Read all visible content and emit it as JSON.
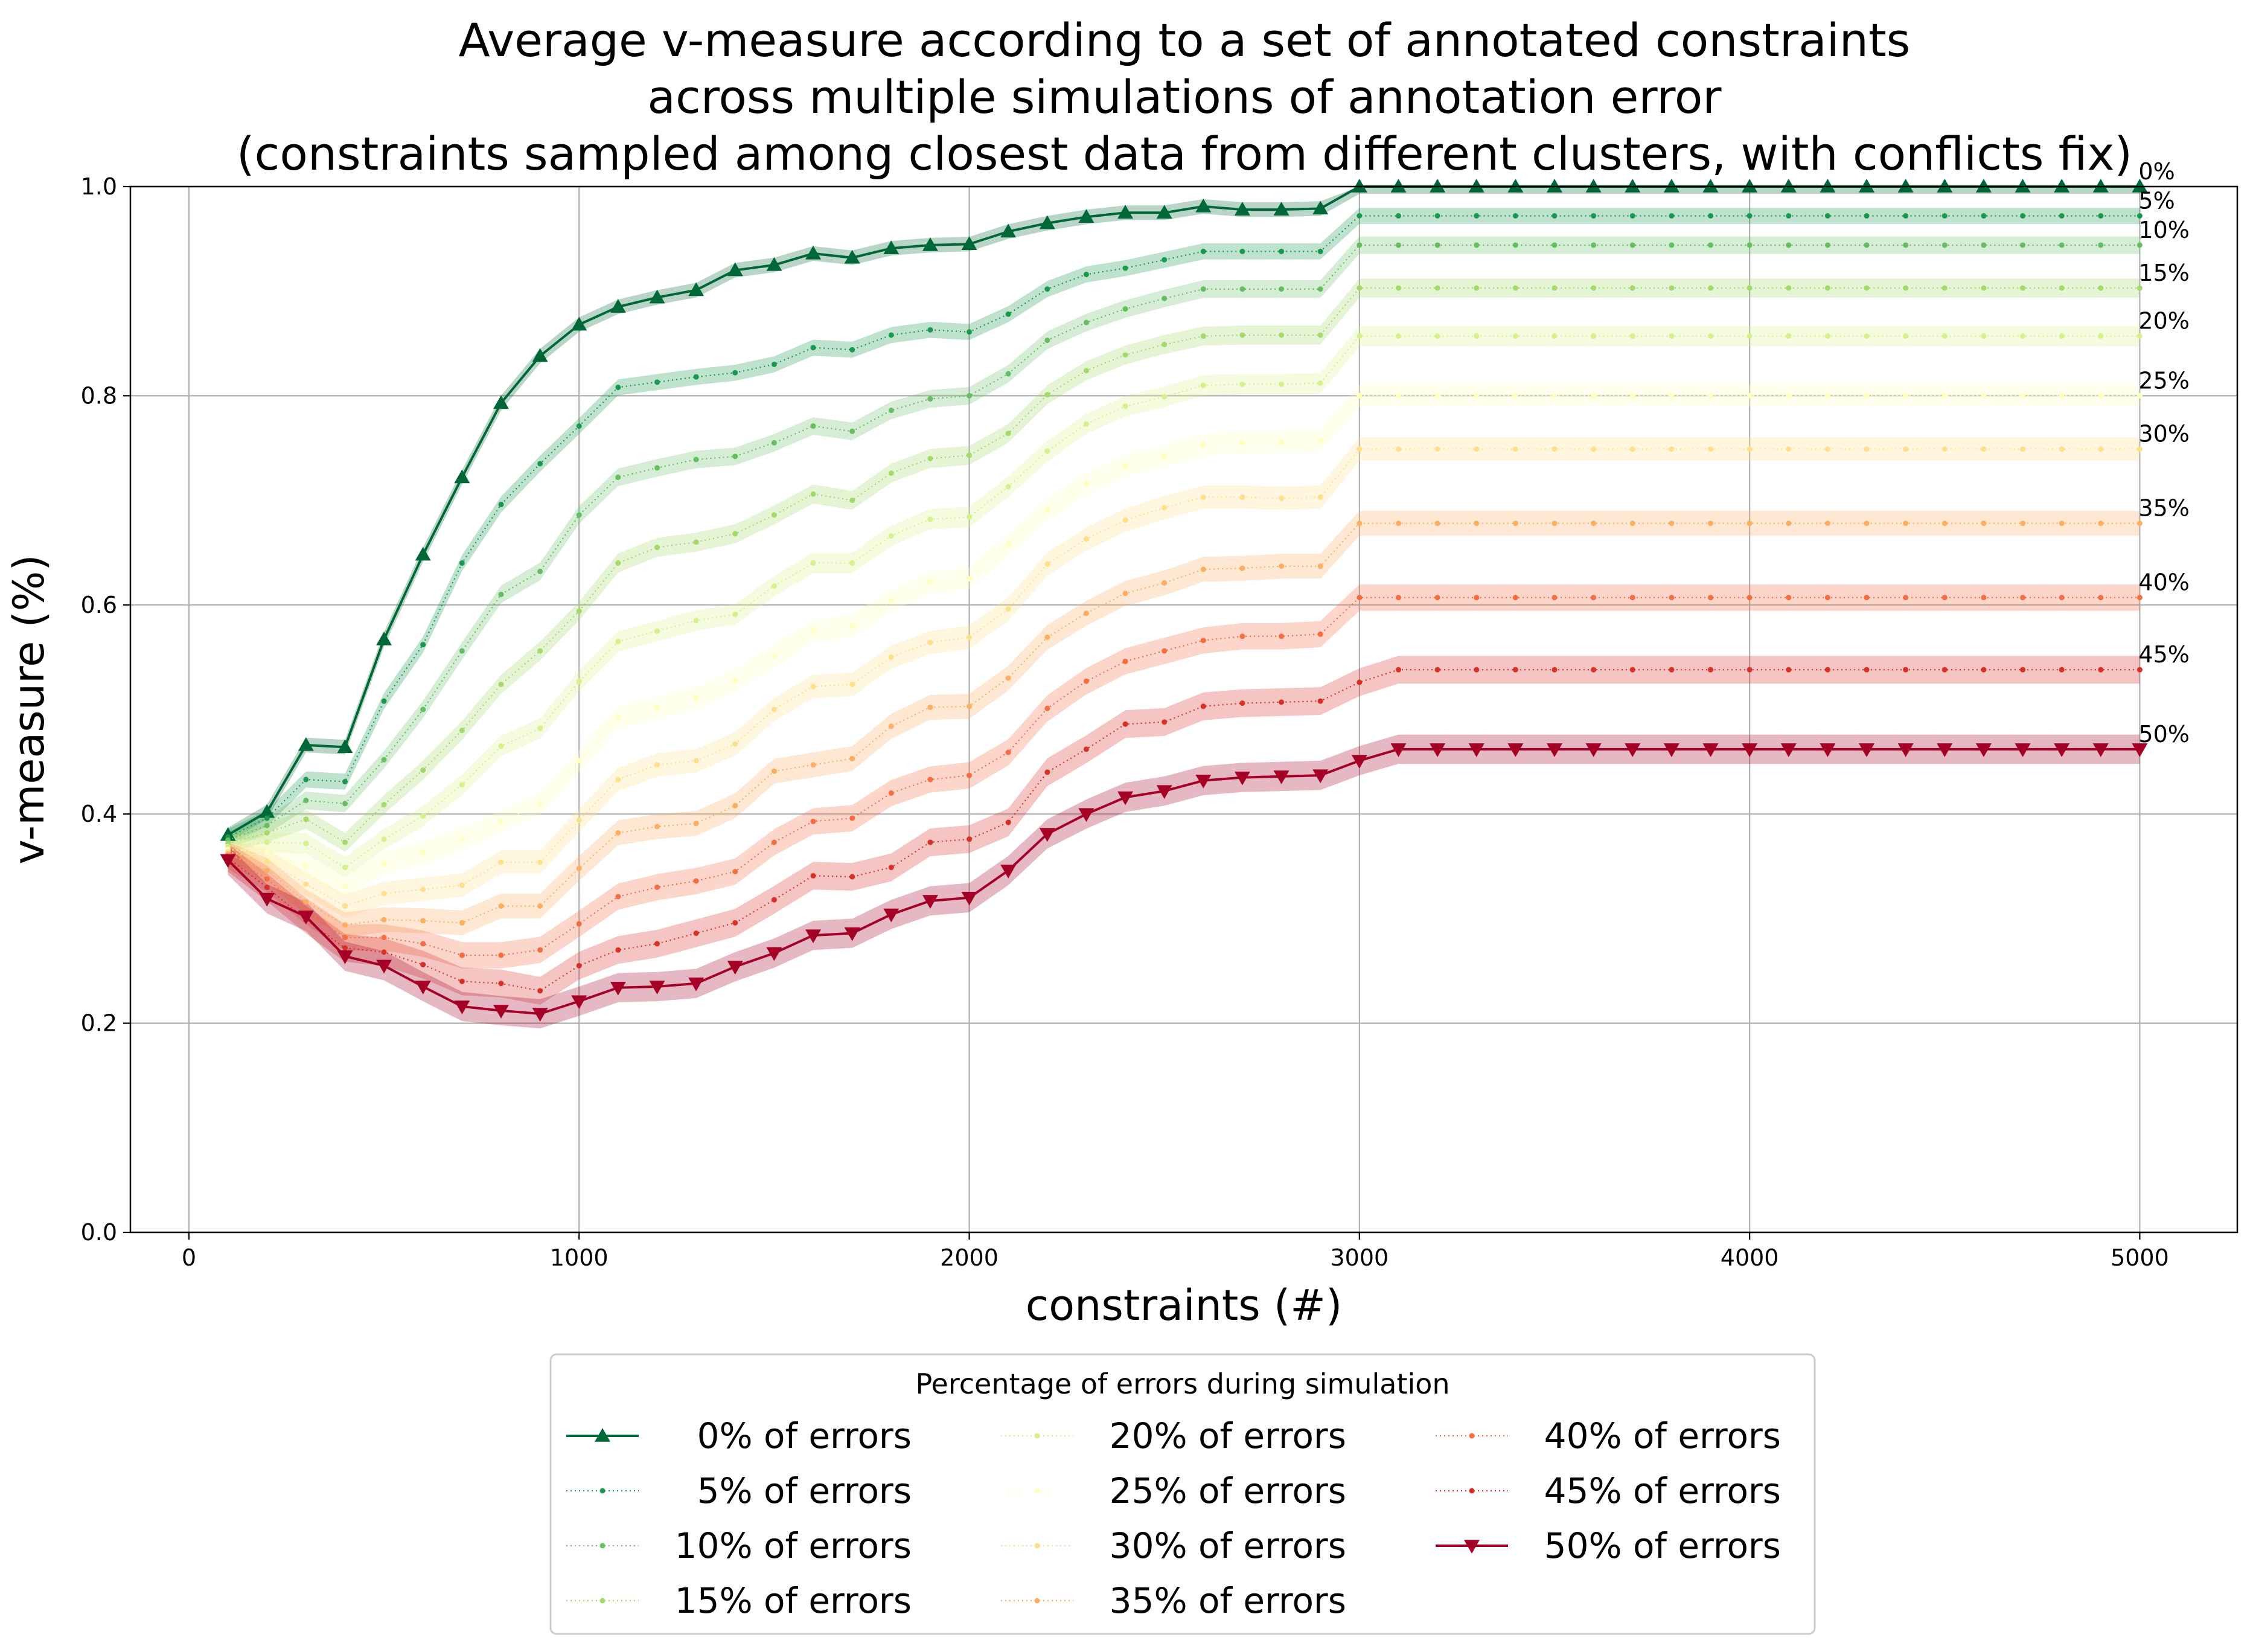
{
  "chart_data": {
    "type": "line",
    "title": [
      "Average v-measure according to a set of annotated constraints",
      "across multiple simulations of annotation error",
      "(constraints sampled among closest data from different clusters, with conflicts fix)"
    ],
    "xlabel": "constraints (#)",
    "ylabel": "v-measure (%)",
    "xlim": [
      -150,
      5250
    ],
    "ylim": [
      0,
      1.0
    ],
    "xticks": [
      0,
      1000,
      2000,
      3000,
      4000,
      5000
    ],
    "yticks": [
      0.0,
      0.2,
      0.4,
      0.6,
      0.8,
      1.0
    ],
    "grid": true,
    "legend": {
      "title": "Percentage of errors during simulation",
      "placement": "below",
      "columns": 3
    },
    "x": [
      100,
      200,
      300,
      400,
      500,
      600,
      700,
      800,
      900,
      1000,
      1100,
      1200,
      1300,
      1400,
      1500,
      1600,
      1700,
      1800,
      1900,
      2000,
      2100,
      2200,
      2300,
      2400,
      2500,
      2600,
      2700,
      2800,
      2900,
      3000,
      3100,
      3200,
      3300,
      3400,
      3500,
      3600,
      3700,
      3800,
      3900,
      4000,
      4100,
      4200,
      4300,
      4400,
      4500,
      4600,
      4700,
      4800,
      4900,
      5000
    ],
    "series": [
      {
        "name": "0% of errors",
        "end_label": "0%",
        "color": "#006837",
        "style": "solid",
        "marker": "triangle-up",
        "values": [
          0.38,
          0.402,
          0.466,
          0.464,
          0.567,
          0.648,
          0.722,
          0.793,
          0.838,
          0.868,
          0.885,
          0.894,
          0.901,
          0.92,
          0.925,
          0.936,
          0.932,
          0.941,
          0.944,
          0.945,
          0.957,
          0.965,
          0.971,
          0.975,
          0.975,
          0.981,
          0.978,
          0.978,
          0.979,
          1.0,
          1.0,
          1.0,
          1.0,
          1.0,
          1.0,
          1.0,
          1.0,
          1.0,
          1.0,
          1.0,
          1.0,
          1.0,
          1.0,
          1.0,
          1.0,
          1.0,
          1.0,
          1.0,
          1.0,
          1.0
        ]
      },
      {
        "name": "5% of errors",
        "end_label": "5%",
        "color": "#1a9850",
        "style": "dotted",
        "marker": "dot",
        "values": [
          0.378,
          0.396,
          0.433,
          0.431,
          0.508,
          0.562,
          0.64,
          0.696,
          0.735,
          0.771,
          0.808,
          0.813,
          0.818,
          0.822,
          0.83,
          0.846,
          0.844,
          0.858,
          0.863,
          0.861,
          0.878,
          0.902,
          0.916,
          0.922,
          0.93,
          0.938,
          0.938,
          0.938,
          0.938,
          0.972,
          0.972,
          0.972,
          0.972,
          0.972,
          0.972,
          0.972,
          0.972,
          0.972,
          0.972,
          0.972,
          0.972,
          0.972,
          0.972,
          0.972,
          0.972,
          0.972,
          0.972,
          0.972,
          0.972,
          0.972
        ]
      },
      {
        "name": "10% of errors",
        "end_label": "10%",
        "color": "#66bd63",
        "style": "dotted",
        "marker": "dot",
        "values": [
          0.375,
          0.389,
          0.413,
          0.41,
          0.452,
          0.5,
          0.556,
          0.61,
          0.632,
          0.686,
          0.722,
          0.731,
          0.739,
          0.742,
          0.755,
          0.771,
          0.766,
          0.786,
          0.797,
          0.8,
          0.821,
          0.853,
          0.87,
          0.883,
          0.893,
          0.902,
          0.902,
          0.902,
          0.902,
          0.944,
          0.944,
          0.944,
          0.944,
          0.944,
          0.944,
          0.944,
          0.944,
          0.944,
          0.944,
          0.944,
          0.944,
          0.944,
          0.944,
          0.944,
          0.944,
          0.944,
          0.944,
          0.944,
          0.944,
          0.944
        ]
      },
      {
        "name": "15% of errors",
        "end_label": "15%",
        "color": "#a6d96a",
        "style": "dotted",
        "marker": "dot",
        "values": [
          0.372,
          0.382,
          0.395,
          0.373,
          0.409,
          0.442,
          0.48,
          0.524,
          0.556,
          0.594,
          0.64,
          0.655,
          0.66,
          0.668,
          0.686,
          0.706,
          0.7,
          0.726,
          0.74,
          0.743,
          0.764,
          0.801,
          0.824,
          0.839,
          0.849,
          0.857,
          0.858,
          0.858,
          0.858,
          0.903,
          0.903,
          0.903,
          0.903,
          0.903,
          0.903,
          0.903,
          0.903,
          0.903,
          0.903,
          0.903,
          0.903,
          0.903,
          0.903,
          0.903,
          0.903,
          0.903,
          0.903,
          0.903,
          0.903,
          0.903
        ]
      },
      {
        "name": "20% of errors",
        "end_label": "20%",
        "color": "#d9ef8b",
        "style": "dotted",
        "marker": "dot",
        "values": [
          0.369,
          0.373,
          0.372,
          0.349,
          0.376,
          0.398,
          0.428,
          0.465,
          0.482,
          0.527,
          0.565,
          0.575,
          0.585,
          0.591,
          0.618,
          0.64,
          0.64,
          0.666,
          0.682,
          0.684,
          0.713,
          0.747,
          0.773,
          0.79,
          0.799,
          0.81,
          0.811,
          0.811,
          0.812,
          0.857,
          0.857,
          0.857,
          0.857,
          0.857,
          0.857,
          0.857,
          0.857,
          0.857,
          0.857,
          0.857,
          0.857,
          0.857,
          0.857,
          0.857,
          0.857,
          0.857,
          0.857,
          0.857,
          0.857,
          0.857
        ]
      },
      {
        "name": "25% of errors",
        "end_label": "25%",
        "color": "#ffffbf",
        "style": "dotted",
        "marker": "dot",
        "values": [
          0.366,
          0.364,
          0.35,
          0.331,
          0.353,
          0.363,
          0.376,
          0.393,
          0.41,
          0.451,
          0.492,
          0.501,
          0.511,
          0.528,
          0.551,
          0.575,
          0.58,
          0.604,
          0.622,
          0.625,
          0.658,
          0.691,
          0.716,
          0.733,
          0.742,
          0.753,
          0.755,
          0.756,
          0.757,
          0.8,
          0.8,
          0.8,
          0.8,
          0.8,
          0.8,
          0.8,
          0.8,
          0.8,
          0.8,
          0.8,
          0.8,
          0.8,
          0.8,
          0.8,
          0.8,
          0.8,
          0.8,
          0.8,
          0.8,
          0.8
        ]
      },
      {
        "name": "30% of errors",
        "end_label": "30%",
        "color": "#fee08b",
        "style": "dotted",
        "marker": "dot",
        "values": [
          0.364,
          0.355,
          0.333,
          0.312,
          0.324,
          0.328,
          0.332,
          0.354,
          0.354,
          0.394,
          0.433,
          0.447,
          0.451,
          0.467,
          0.5,
          0.522,
          0.524,
          0.55,
          0.564,
          0.569,
          0.596,
          0.639,
          0.663,
          0.681,
          0.693,
          0.703,
          0.703,
          0.702,
          0.703,
          0.749,
          0.749,
          0.749,
          0.749,
          0.749,
          0.749,
          0.749,
          0.749,
          0.749,
          0.749,
          0.749,
          0.749,
          0.749,
          0.749,
          0.749,
          0.749,
          0.749,
          0.749,
          0.749,
          0.749,
          0.749
        ]
      },
      {
        "name": "35% of errors",
        "end_label": "35%",
        "color": "#fdae61",
        "style": "dotted",
        "marker": "dot",
        "values": [
          0.362,
          0.346,
          0.316,
          0.294,
          0.299,
          0.298,
          0.296,
          0.312,
          0.312,
          0.348,
          0.382,
          0.388,
          0.391,
          0.408,
          0.441,
          0.447,
          0.453,
          0.484,
          0.502,
          0.503,
          0.53,
          0.569,
          0.592,
          0.611,
          0.621,
          0.634,
          0.635,
          0.637,
          0.637,
          0.678,
          0.678,
          0.678,
          0.678,
          0.678,
          0.678,
          0.678,
          0.678,
          0.678,
          0.678,
          0.678,
          0.678,
          0.678,
          0.678,
          0.678,
          0.678,
          0.678,
          0.678,
          0.678,
          0.678,
          0.678
        ]
      },
      {
        "name": "40% of errors",
        "end_label": "40%",
        "color": "#f46d43",
        "style": "dotted",
        "marker": "dot",
        "values": [
          0.36,
          0.338,
          0.307,
          0.282,
          0.282,
          0.276,
          0.265,
          0.265,
          0.27,
          0.295,
          0.321,
          0.33,
          0.336,
          0.345,
          0.373,
          0.393,
          0.396,
          0.42,
          0.433,
          0.437,
          0.459,
          0.501,
          0.527,
          0.546,
          0.556,
          0.566,
          0.57,
          0.57,
          0.572,
          0.607,
          0.607,
          0.607,
          0.607,
          0.607,
          0.607,
          0.607,
          0.607,
          0.607,
          0.607,
          0.607,
          0.607,
          0.607,
          0.607,
          0.607,
          0.607,
          0.607,
          0.607,
          0.607,
          0.607,
          0.607
        ]
      },
      {
        "name": "45% of errors",
        "end_label": "45%",
        "color": "#d73027",
        "style": "dotted",
        "marker": "dot",
        "values": [
          0.358,
          0.33,
          0.299,
          0.272,
          0.268,
          0.256,
          0.24,
          0.238,
          0.231,
          0.255,
          0.27,
          0.276,
          0.286,
          0.296,
          0.318,
          0.341,
          0.34,
          0.349,
          0.373,
          0.376,
          0.392,
          0.44,
          0.462,
          0.486,
          0.488,
          0.503,
          0.506,
          0.507,
          0.508,
          0.526,
          0.538,
          0.538,
          0.538,
          0.538,
          0.538,
          0.538,
          0.538,
          0.538,
          0.538,
          0.538,
          0.538,
          0.538,
          0.538,
          0.538,
          0.538,
          0.538,
          0.538,
          0.538,
          0.538,
          0.538
        ]
      },
      {
        "name": "50% of errors",
        "end_label": "50%",
        "color": "#a50026",
        "style": "solid",
        "marker": "triangle-down",
        "values": [
          0.356,
          0.319,
          0.302,
          0.264,
          0.255,
          0.235,
          0.216,
          0.212,
          0.209,
          0.221,
          0.234,
          0.235,
          0.238,
          0.254,
          0.267,
          0.284,
          0.286,
          0.304,
          0.317,
          0.32,
          0.346,
          0.381,
          0.4,
          0.416,
          0.422,
          0.432,
          0.435,
          0.436,
          0.437,
          0.451,
          0.462,
          0.462,
          0.462,
          0.462,
          0.462,
          0.462,
          0.462,
          0.462,
          0.462,
          0.462,
          0.462,
          0.462,
          0.462,
          0.462,
          0.462,
          0.462,
          0.462,
          0.462,
          0.462,
          0.462
        ]
      }
    ]
  }
}
